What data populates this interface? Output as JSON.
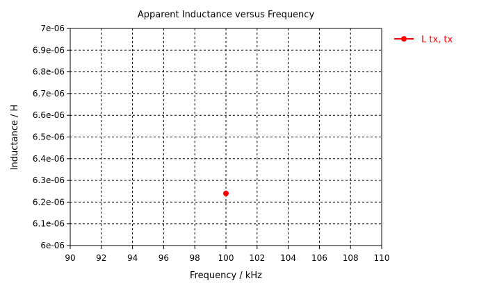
{
  "chart_data": {
    "type": "scatter",
    "title": "Apparent Inductance versus Frequency",
    "xlabel": "Frequency / kHz",
    "ylabel": "Inductance / H",
    "xlim": [
      90,
      110
    ],
    "ylim": [
      6e-06,
      7e-06
    ],
    "x_ticks": [
      "90",
      "92",
      "94",
      "96",
      "98",
      "100",
      "102",
      "104",
      "106",
      "108",
      "110"
    ],
    "y_ticks": [
      "6e-06",
      "6.1e-06",
      "6.2e-06",
      "6.3e-06",
      "6.4e-06",
      "6.5e-06",
      "6.6e-06",
      "6.7e-06",
      "6.8e-06",
      "6.9e-06",
      "7e-06"
    ],
    "grid": true,
    "legend_position": "top-right, outside plot",
    "series": [
      {
        "name": "L tx, tx",
        "color": "#ff0000",
        "marker": "circle",
        "points": [
          {
            "x": 100,
            "y": 6.24e-06
          }
        ]
      }
    ]
  }
}
